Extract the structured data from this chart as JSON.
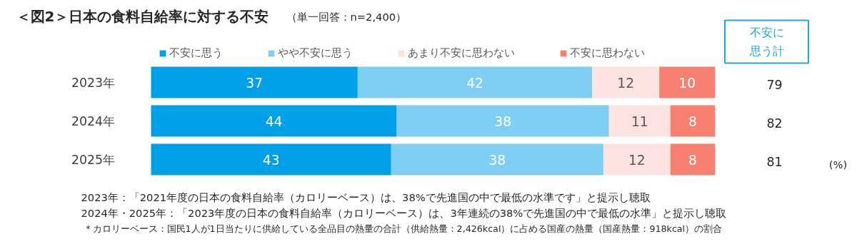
{
  "chart_data": {
    "type": "bar",
    "orientation": "horizontal",
    "stacked": true,
    "data_labels": true,
    "legend": "top",
    "grid": false,
    "title": "＜図2＞日本の食料自給率に対する不安",
    "subtitle": "（単一回答：n=2,400）",
    "categories": [
      "2023年",
      "2024年",
      "2025年"
    ],
    "series": [
      {
        "name": "不安に思う",
        "color": "#00a0e9",
        "values": [
          37,
          44,
          43
        ]
      },
      {
        "name": "やや不安に思う",
        "color": "#7fcff5",
        "values": [
          42,
          38,
          38
        ]
      },
      {
        "name": "あまり不安に思わない",
        "color": "#fde3df",
        "values": [
          12,
          11,
          12
        ]
      },
      {
        "name": "不安に思わない",
        "color": "#f88070",
        "values": [
          10,
          8,
          8
        ]
      }
    ],
    "annotations": [
      "不安に思う計",
      "79",
      "82",
      "81",
      "(%)",
      "2023年：「2021年度の日本の食料自給率（カロリーベース）は、38%で先進国の中で最低の水準です」と提示し聴取",
      "2024年・2025年：「2023年度の日本の食料自給率（カロリーベース）は、3年連続の38%で先進国の中で最低の水準」と提示し聴取",
      "＊カロリーベース：国民1人が1日当たりに供給している全品目の熱量の合計（供給熱量：2,426kcal）に占める国産の熱量（国産熱量：918kcal）の割合"
    ]
  }
}
